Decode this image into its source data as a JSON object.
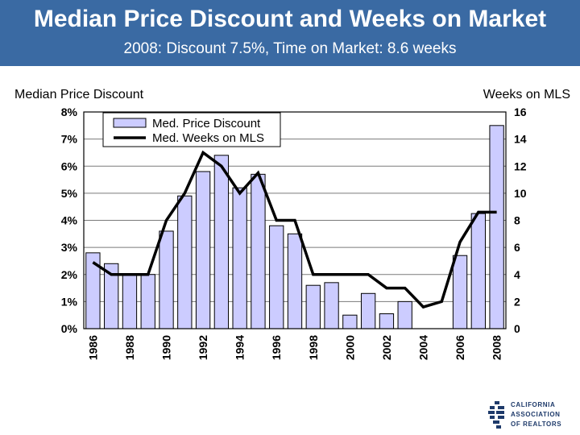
{
  "header": {
    "title": "Median Price Discount and Weeks on Market",
    "subtitle": "2008: Discount 7.5%, Time on Market: 8.6 weeks"
  },
  "chart_data": {
    "type": "bar",
    "categories": [
      "1986",
      "1987",
      "1988",
      "1989",
      "1990",
      "1991",
      "1992",
      "1993",
      "1994",
      "1995",
      "1996",
      "1997",
      "1998",
      "1999",
      "2000",
      "2001",
      "2002",
      "2003",
      "2004",
      "2005",
      "2006",
      "2007",
      "2008"
    ],
    "x_tick_labels": [
      "1986",
      "1988",
      "1990",
      "1992",
      "1994",
      "1996",
      "1998",
      "2000",
      "2002",
      "2004",
      "2006",
      "2008"
    ],
    "series": [
      {
        "name": "Med. Price Discount",
        "type": "bar",
        "axis": "left",
        "color": "#ccccff",
        "values": [
          2.8,
          2.4,
          2.0,
          2.0,
          3.6,
          4.9,
          5.8,
          6.4,
          5.2,
          5.7,
          3.8,
          3.5,
          1.6,
          1.7,
          0.5,
          1.3,
          0.55,
          1.0,
          0,
          0,
          2.7,
          4.25,
          7.5
        ]
      },
      {
        "name": "Med. Weeks on MLS",
        "type": "line",
        "axis": "right",
        "color": "#000000",
        "values": [
          4.9,
          4.0,
          4.0,
          4.0,
          8.0,
          10.0,
          13.0,
          12.0,
          10.0,
          11.5,
          8.0,
          8.0,
          4.0,
          4.0,
          4.0,
          4.0,
          3.0,
          3.0,
          1.6,
          2.0,
          6.4,
          8.6,
          8.6
        ]
      }
    ],
    "y_left": {
      "label": "Median Price Discount",
      "range": [
        0,
        8
      ],
      "ticks": [
        "0%",
        "1%",
        "2%",
        "3%",
        "4%",
        "5%",
        "6%",
        "7%",
        "8%"
      ]
    },
    "y_right": {
      "label": "Weeks on MLS",
      "range": [
        0,
        16
      ],
      "ticks": [
        "0",
        "2",
        "4",
        "6",
        "8",
        "10",
        "12",
        "14",
        "16"
      ]
    },
    "grid": true,
    "legend_position": "top-left"
  },
  "logo": {
    "lines": [
      "CALIFORNIA",
      "ASSOCIATION",
      "OF REALTORS"
    ]
  }
}
